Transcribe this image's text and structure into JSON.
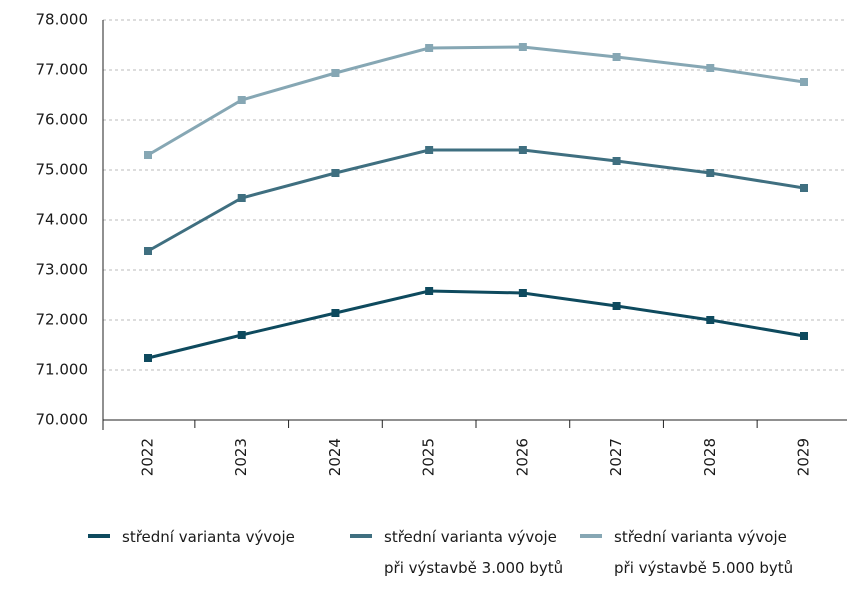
{
  "chart_data": {
    "type": "line",
    "categories": [
      "2022",
      "2023",
      "2024",
      "2025",
      "2026",
      "2027",
      "2028",
      "2029"
    ],
    "series": [
      {
        "name": "střední varianta vývoje",
        "color": "#0e4a5e",
        "values": [
          71240,
          71700,
          72140,
          72580,
          72540,
          72280,
          72000,
          71680
        ]
      },
      {
        "name": "střední varianta vývoje při výstavbě 3.000 bytů",
        "color": "#3f6f80",
        "values": [
          73380,
          74440,
          74940,
          75400,
          75400,
          75180,
          74940,
          74640
        ]
      },
      {
        "name": "střední varianta vývoje při výstavbě 5.000 bytů",
        "color": "#86a7b4",
        "values": [
          75300,
          76400,
          76940,
          77440,
          77460,
          77260,
          77040,
          76760
        ]
      }
    ],
    "ylim": [
      70000,
      78000
    ],
    "yticks": [
      {
        "value": 70000,
        "label": "70.000"
      },
      {
        "value": 71000,
        "label": "71.000"
      },
      {
        "value": 72000,
        "label": "72.000"
      },
      {
        "value": 73000,
        "label": "73.000"
      },
      {
        "value": 74000,
        "label": "74.000"
      },
      {
        "value": 75000,
        "label": "75.000"
      },
      {
        "value": 76000,
        "label": "76.000"
      },
      {
        "value": 77000,
        "label": "77.000"
      },
      {
        "value": 78000,
        "label": "78.000"
      }
    ],
    "grid": true
  }
}
